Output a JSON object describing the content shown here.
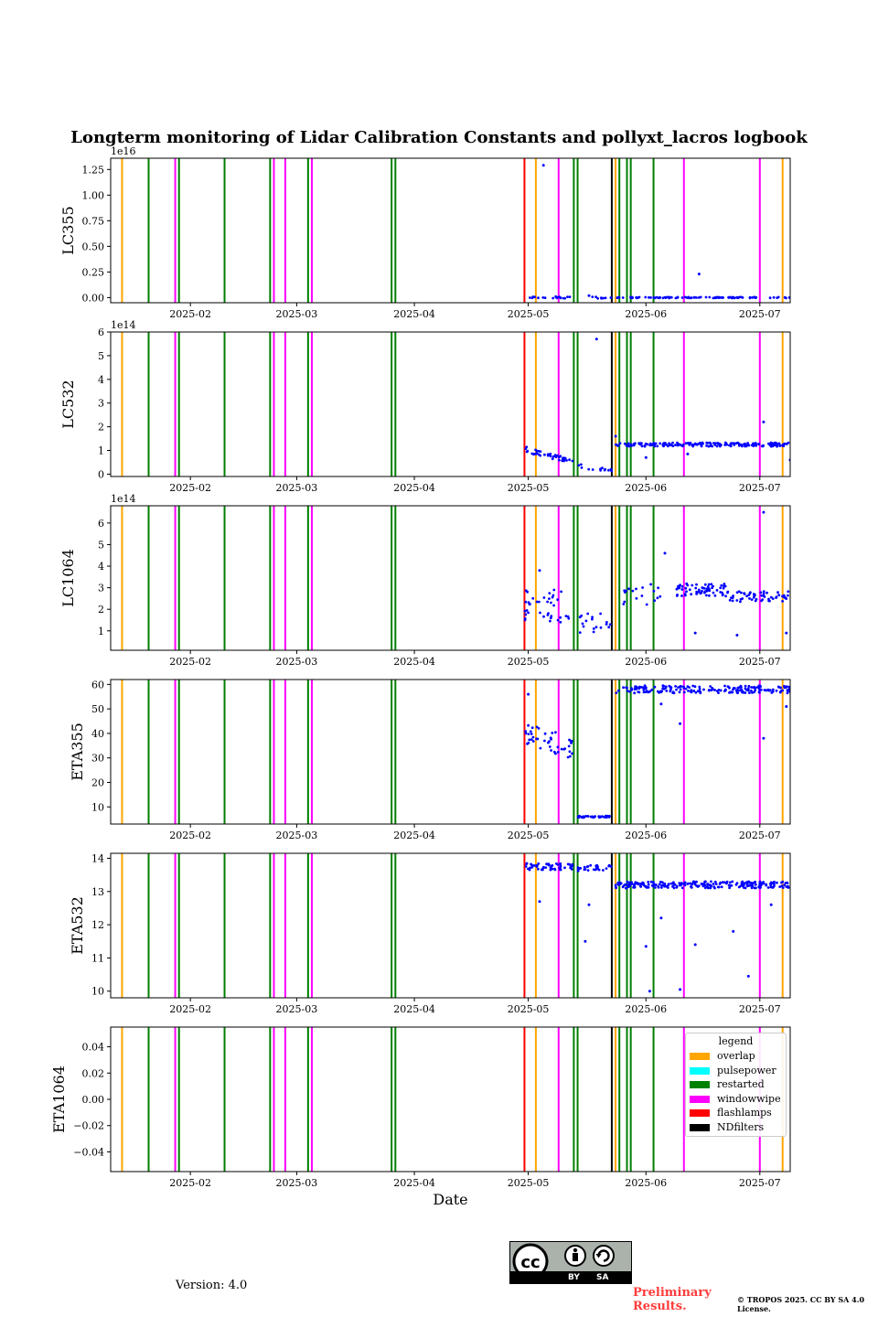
{
  "chart_data": {
    "type": "scatter",
    "title": "Longterm monitoring of Lidar Calibration Constants and pollyxt_lacros logbook",
    "xlabel": "Date",
    "xlim": [
      "2025-01-11",
      "2025-07-09"
    ],
    "xticks": [
      "2025-02-01",
      "2025-03-01",
      "2025-04-01",
      "2025-05-01",
      "2025-06-01",
      "2025-07-01"
    ],
    "xtick_labels": [
      "2025-02",
      "2025-03",
      "2025-04",
      "2025-05",
      "2025-06",
      "2025-07"
    ],
    "series_color": "#0000ff",
    "legend": {
      "title": "legend",
      "placement": "upper right (last panel)",
      "items": [
        {
          "label": "overlap",
          "color": "#ffa500"
        },
        {
          "label": "pulsepower",
          "color": "#00ffff"
        },
        {
          "label": "restarted",
          "color": "#008000"
        },
        {
          "label": "windowwipe",
          "color": "#ff00ff"
        },
        {
          "label": "flashlamps",
          "color": "#ff0000"
        },
        {
          "label": "NDfilters",
          "color": "#000000"
        }
      ]
    },
    "events": [
      {
        "type": "overlap",
        "dates": [
          "2025-01-14",
          "2025-05-03",
          "2025-05-24",
          "2025-07-07"
        ]
      },
      {
        "type": "restarted",
        "dates": [
          "2025-01-21",
          "2025-01-29",
          "2025-02-10",
          "2025-02-22",
          "2025-03-04",
          "2025-03-26",
          "2025-03-27",
          "2025-05-13",
          "2025-05-14",
          "2025-05-25",
          "2025-05-27",
          "2025-05-28",
          "2025-06-03"
        ]
      },
      {
        "type": "windowwipe",
        "dates": [
          "2025-01-28",
          "2025-02-23",
          "2025-02-26",
          "2025-03-05",
          "2025-05-09",
          "2025-06-11",
          "2025-07-01"
        ]
      },
      {
        "type": "flashlamps",
        "dates": [
          "2025-04-30"
        ]
      },
      {
        "type": "NDfilters",
        "dates": [
          "2025-05-23"
        ]
      }
    ],
    "panels": [
      {
        "ylabel": "LC355",
        "ylim": [
          -0.05,
          1.36
        ],
        "yticks": [
          0,
          0.25,
          0.5,
          0.75,
          1.0,
          1.25
        ],
        "ytick_labels": [
          "0.00",
          "0.25",
          "0.50",
          "0.75",
          "1.00",
          "1.25"
        ],
        "offset": "1e16",
        "segments": [
          {
            "start": "2025-04-30",
            "end": "2025-05-13",
            "base": 0.0,
            "noise": 0.01,
            "density": 1.4
          },
          {
            "start": "2025-05-14",
            "end": "2025-05-23",
            "base": 0.0,
            "noise": 0.01,
            "density": 0.9
          },
          {
            "start": "2025-05-24",
            "end": "2025-07-09",
            "base": 0.0,
            "noise": 0.005,
            "density": 2.0
          }
        ],
        "points": [
          [
            "2025-05-05",
            1.29
          ],
          [
            "2025-06-15",
            0.23
          ],
          [
            "2025-05-17",
            0.02
          ]
        ]
      },
      {
        "ylabel": "LC532",
        "ylim": [
          -0.1,
          6
        ],
        "yticks": [
          0,
          1,
          2,
          3,
          4,
          5,
          6
        ],
        "ytick_labels": [
          "0",
          "1",
          "2",
          "3",
          "4",
          "5",
          "6"
        ],
        "offset": "1e14",
        "segments": [
          {
            "start": "2025-04-30",
            "end": "2025-05-13",
            "base": 1.05,
            "slope_end": 0.5,
            "noise": 0.12,
            "density": 3.0
          },
          {
            "start": "2025-05-14",
            "end": "2025-05-23",
            "base": 0.35,
            "slope_end": 0.15,
            "noise": 0.08,
            "density": 1.5
          },
          {
            "start": "2025-05-24",
            "end": "2025-07-09",
            "base": 1.25,
            "noise": 0.08,
            "density": 4.0
          }
        ],
        "points": [
          [
            "2025-05-19",
            5.7
          ],
          [
            "2025-07-02",
            2.2
          ],
          [
            "2025-05-24",
            1.6
          ],
          [
            "2025-06-12",
            0.85
          ],
          [
            "2025-06-01",
            0.7
          ],
          [
            "2025-07-09",
            0.6
          ]
        ]
      },
      {
        "ylabel": "LC1064",
        "ylim": [
          0.1,
          6.8
        ],
        "yticks": [
          1,
          2,
          3,
          4,
          5,
          6
        ],
        "ytick_labels": [
          "1",
          "2",
          "3",
          "4",
          "5",
          "6"
        ],
        "offset": "1e14",
        "segments": [
          {
            "start": "2025-04-30",
            "end": "2025-05-13",
            "base": 2.2,
            "noise": 0.8,
            "density": 3.0
          },
          {
            "start": "2025-05-14",
            "end": "2025-05-23",
            "base": 1.4,
            "noise": 0.5,
            "density": 2.0
          },
          {
            "start": "2025-05-24",
            "end": "2025-06-05",
            "base": 2.7,
            "noise": 0.5,
            "density": 1.5
          },
          {
            "start": "2025-06-09",
            "end": "2025-06-22",
            "base": 2.9,
            "noise": 0.3,
            "density": 5.0
          },
          {
            "start": "2025-06-22",
            "end": "2025-07-09",
            "base": 2.6,
            "noise": 0.25,
            "density": 3.5
          }
        ],
        "points": [
          [
            "2025-07-02",
            6.5
          ],
          [
            "2025-06-06",
            4.6
          ],
          [
            "2025-06-25",
            0.8
          ],
          [
            "2025-07-08",
            0.9
          ],
          [
            "2025-05-04",
            3.8
          ],
          [
            "2025-06-14",
            0.9
          ]
        ]
      },
      {
        "ylabel": "ETA355",
        "ylim": [
          3,
          62
        ],
        "yticks": [
          10,
          20,
          30,
          40,
          50,
          60
        ],
        "ytick_labels": [
          "10",
          "20",
          "30",
          "40",
          "50",
          "60"
        ],
        "offset": "",
        "segments": [
          {
            "start": "2025-04-30",
            "end": "2025-05-13",
            "base": 40,
            "slope_end": 34,
            "noise": 4.5,
            "density": 3.5
          },
          {
            "start": "2025-05-14",
            "end": "2025-05-23",
            "base": 6,
            "noise": 0.3,
            "density": 5.0
          },
          {
            "start": "2025-05-24",
            "end": "2025-07-09",
            "base": 58,
            "noise": 1.5,
            "density": 4.0
          }
        ],
        "points": [
          [
            "2025-05-01",
            56
          ],
          [
            "2025-07-02",
            38
          ],
          [
            "2025-06-10",
            44
          ],
          [
            "2025-06-05",
            52
          ],
          [
            "2025-07-08",
            51
          ]
        ]
      },
      {
        "ylabel": "ETA532",
        "ylim": [
          9.8,
          14.15
        ],
        "yticks": [
          10,
          11,
          12,
          13,
          14
        ],
        "ytick_labels": [
          "10",
          "11",
          "12",
          "13",
          "14"
        ],
        "offset": "",
        "segments": [
          {
            "start": "2025-04-30",
            "end": "2025-05-13",
            "base": 13.75,
            "noise": 0.1,
            "density": 4.0
          },
          {
            "start": "2025-05-14",
            "end": "2025-05-23",
            "base": 13.7,
            "noise": 0.1,
            "density": 3.0
          },
          {
            "start": "2025-05-24",
            "end": "2025-07-09",
            "base": 13.2,
            "noise": 0.1,
            "density": 5.0
          }
        ],
        "points": [
          [
            "2025-05-04",
            12.7
          ],
          [
            "2025-05-16",
            11.5
          ],
          [
            "2025-05-17",
            12.6
          ],
          [
            "2025-06-01",
            11.35
          ],
          [
            "2025-06-02",
            10.0
          ],
          [
            "2025-06-05",
            12.2
          ],
          [
            "2025-06-10",
            10.05
          ],
          [
            "2025-06-14",
            11.4
          ],
          [
            "2025-06-24",
            11.8
          ],
          [
            "2025-06-28",
            10.45
          ],
          [
            "2025-07-04",
            12.6
          ]
        ]
      },
      {
        "ylabel": "ETA1064",
        "ylim": [
          -0.055,
          0.055
        ],
        "yticks": [
          -0.04,
          -0.02,
          0.0,
          0.02,
          0.04
        ],
        "ytick_labels": [
          "−0.04",
          "−0.02",
          "0.00",
          "0.02",
          "0.04"
        ],
        "offset": "",
        "segments": [],
        "points": []
      }
    ]
  },
  "footer": {
    "version": "Version: 4.0",
    "preliminary": "Preliminary Results.",
    "copyright": "© TROPOS 2025. CC BY SA 4.0 License.",
    "license_badge": {
      "by": "BY",
      "sa": "SA",
      "icons": [
        "cc-icon",
        "by-icon",
        "sa-icon"
      ]
    }
  }
}
